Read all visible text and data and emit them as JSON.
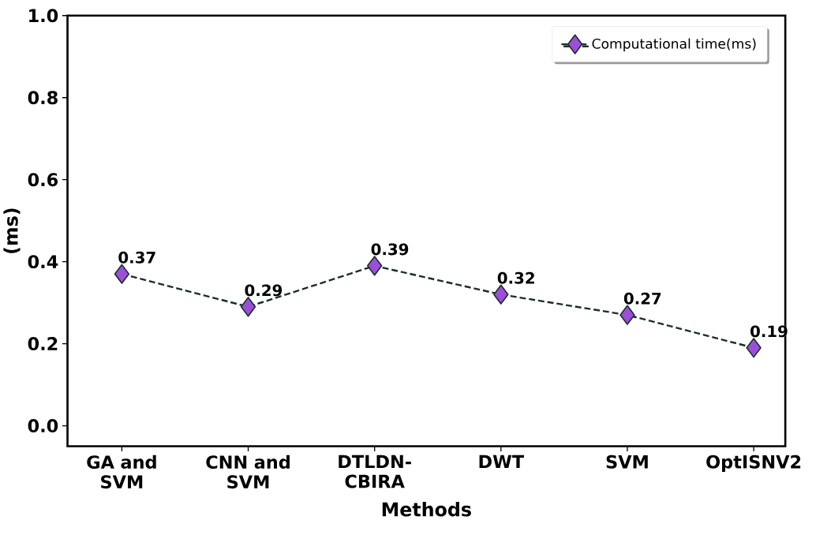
{
  "chart_data": {
    "type": "line",
    "xlabel": "Methods",
    "ylabel": "(ms)",
    "categories": [
      "GA and SVM",
      "CNN and SVM",
      "DTLDN-CBIRA",
      "DWT",
      "SVM",
      "OptISNV2"
    ],
    "series": [
      {
        "name": "Computational time(ms)",
        "color": "#9b4fd9",
        "values": [
          0.37,
          0.29,
          0.39,
          0.32,
          0.27,
          0.19
        ],
        "value_labels": [
          "0.37",
          "0.29",
          "0.39",
          "0.32",
          "0.27",
          "0.19"
        ]
      }
    ],
    "ylim": [
      -0.05,
      1.0
    ],
    "yticks": [
      {
        "value": 0.0,
        "label": "0.0"
      },
      0.2,
      0.4,
      0.6,
      0.8,
      {
        "value": 1.0,
        "label": "1.0"
      }
    ],
    "legend": "top right",
    "marker": "diamond",
    "line_style": "dashed"
  }
}
